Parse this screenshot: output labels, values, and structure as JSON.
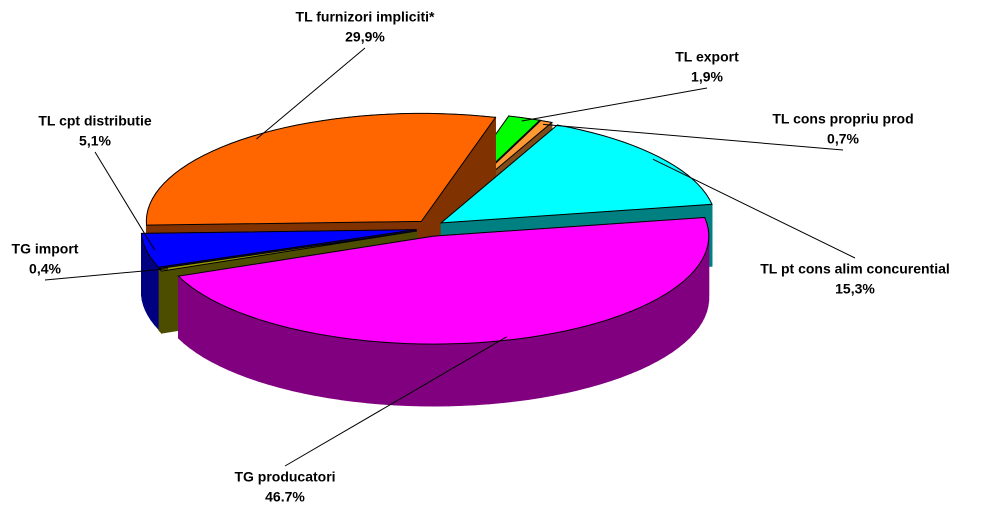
{
  "chart_data": {
    "type": "pie3d",
    "categories": [
      "TL furnizori impliciti*",
      "TL export",
      "TL cons propriu prod",
      "TL pt cons alim concurential",
      "TG producatori",
      "TG import",
      "TL cpt distributie"
    ],
    "values": [
      29.9,
      1.9,
      0.7,
      15.3,
      46.7,
      0.4,
      5.1
    ],
    "value_labels": [
      "29,9%",
      "1,9%",
      "0,7%",
      "15,3%",
      "46.7%",
      "0,4%",
      "5,1%"
    ],
    "colors": [
      "#ff6600",
      "#00ff00",
      "#ff9933",
      "#00ffff",
      "#ff00ff",
      "#999900",
      "#0000ff"
    ]
  }
}
